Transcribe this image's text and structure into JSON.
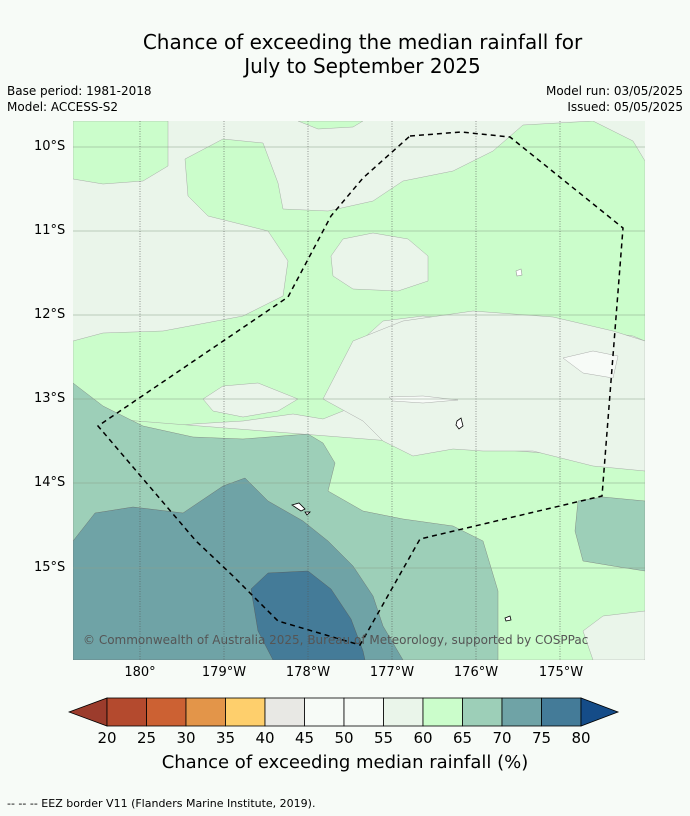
{
  "title_line1": "Chance of exceeding the median rainfall for",
  "title_line2": "July to September 2025",
  "base_period": "Base period: 1981-2018",
  "model": "Model: ACCESS-S2",
  "model_run": "Model run: 03/05/2025",
  "issued": "Issued: 05/05/2025",
  "lat_labels": [
    "10°S",
    "11°S",
    "12°S",
    "13°S",
    "14°S",
    "15°S"
  ],
  "lon_labels": [
    "180°",
    "179°W",
    "178°W",
    "177°W",
    "176°W",
    "175°W"
  ],
  "copyright": "© Commonwealth of Australia 2025, Bureau of Meteorology, supported by COSPPac",
  "colorbar": {
    "ticks": [
      "20",
      "25",
      "30",
      "35",
      "40",
      "45",
      "50",
      "55",
      "60",
      "65",
      "70",
      "75",
      "80"
    ],
    "colors": [
      "#b44a2e",
      "#cc6133",
      "#e39549",
      "#fecf6c",
      "#e8e8e4",
      "#f7fbf7",
      "#f7fbf7",
      "#eaf5ea",
      "#cbfdcb",
      "#9dcfb8",
      "#6fa3a6",
      "#447b98"
    ],
    "under_color": "#9c3c2c",
    "over_color": "#154c88",
    "label": "Chance of exceeding median rainfall (%)"
  },
  "footer": "--  --  -- EEZ border V11 (Flanders Marine Institute, 2019)."
}
